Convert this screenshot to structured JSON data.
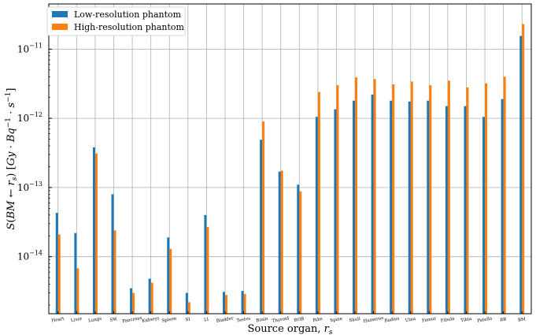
{
  "chart_data": {
    "type": "bar",
    "xlabel": "Source organ, r_s",
    "ylabel": "S(BM ← r_s) [Gy·Bq⁻¹·s⁻¹]",
    "yscale": "log",
    "ylim": [
      1.5e-15,
      4.5e-11
    ],
    "yticks": [
      {
        "value": 1e-14,
        "label": "10",
        "exp": "−14"
      },
      {
        "value": 1e-13,
        "label": "10",
        "exp": "−13"
      },
      {
        "value": 1e-12,
        "label": "10",
        "exp": "−12"
      },
      {
        "value": 1e-11,
        "label": "10",
        "exp": "−11"
      }
    ],
    "grid": true,
    "legend_position": "top-left",
    "categories": [
      "Heart",
      "Liver",
      "Lungs",
      "SW",
      "Pancreas",
      "Kidneys",
      "Spleen",
      "SI",
      "LI",
      "Bladder",
      "Testes",
      "Brain",
      "Thyroid",
      "ROB",
      "Ribs",
      "Spine",
      "Skull",
      "Humerus",
      "Radius",
      "Ulna",
      "Femur",
      "Fibula",
      "Tibia",
      "Patella",
      "RB",
      "BM"
    ],
    "series": [
      {
        "name": "Low-resolution phantom",
        "color": "#1f77b4",
        "values": [
          4.3e-14,
          2.2e-14,
          3.8e-13,
          8e-14,
          3.5e-15,
          4.8e-15,
          1.9e-14,
          3e-15,
          4e-14,
          3.1e-15,
          3.2e-15,
          4.9e-13,
          1.7e-13,
          1.1e-13,
          1.05e-12,
          1.35e-12,
          1.8e-12,
          2.2e-12,
          1.8e-12,
          1.75e-12,
          1.8e-12,
          1.5e-12,
          1.5e-12,
          1.05e-12,
          1.9e-12,
          1.55e-11
        ]
      },
      {
        "name": "High-resolution phantom",
        "color": "#ff7f0e",
        "values": [
          2.1e-14,
          6.8e-15,
          3.1e-13,
          2.4e-14,
          3e-15,
          4.2e-15,
          1.3e-14,
          2.2e-15,
          2.7e-14,
          2.8e-15,
          2.9e-15,
          9e-13,
          1.75e-13,
          8.8e-14,
          2.4e-12,
          3e-12,
          3.9e-12,
          3.7e-12,
          3.1e-12,
          3.4e-12,
          3e-12,
          3.5e-12,
          2.8e-12,
          3.2e-12,
          4e-12,
          2.3e-11
        ]
      }
    ]
  }
}
